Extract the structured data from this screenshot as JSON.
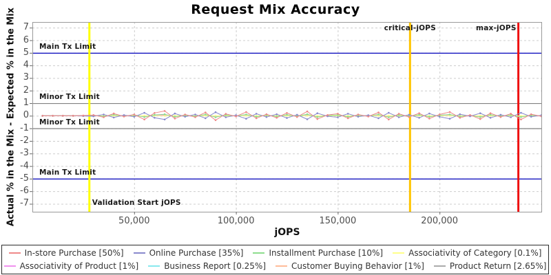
{
  "title": "Request Mix Accuracy",
  "chart_data": {
    "type": "line",
    "title": "Request Mix Accuracy",
    "xlabel": "jOPS",
    "ylabel": "Actual % in the Mix - Expected % in the Mix",
    "xlim": [
      0,
      250000
    ],
    "ylim": [
      -7.63,
      7.45
    ],
    "grid": "dashed",
    "legend_position": "bottom",
    "x_ticks": [
      {
        "value": 50000,
        "label": "50,000"
      },
      {
        "value": 100000,
        "label": "100,000"
      },
      {
        "value": 150000,
        "label": "150,000"
      },
      {
        "value": 200000,
        "label": "200,000"
      }
    ],
    "y_ticks": [
      {
        "value": 7,
        "label": "7"
      },
      {
        "value": 6,
        "label": "6"
      },
      {
        "value": 5,
        "label": "5"
      },
      {
        "value": 4,
        "label": "4"
      },
      {
        "value": 3,
        "label": "3"
      },
      {
        "value": 2,
        "label": "2"
      },
      {
        "value": 1,
        "label": "1"
      },
      {
        "value": 0,
        "label": "0"
      },
      {
        "value": -1,
        "label": "-1"
      },
      {
        "value": -2,
        "label": "-2"
      },
      {
        "value": -3,
        "label": "-3"
      },
      {
        "value": -4,
        "label": "-4"
      },
      {
        "value": -5,
        "label": "-5"
      },
      {
        "value": -6,
        "label": "-6"
      },
      {
        "value": -7,
        "label": "-7"
      }
    ],
    "limit_lines": [
      {
        "y": 5,
        "label": "Main Tx Limit",
        "color": "#0000bb"
      },
      {
        "y": 1,
        "label": "Minor Tx Limit",
        "color": "#808080"
      },
      {
        "y": -1,
        "label": "Minor Tx Limit",
        "color": "#808080"
      },
      {
        "y": -5,
        "label": "Main Tx Limit",
        "color": "#0000bb"
      }
    ],
    "marker_lines": [
      {
        "x": 28000,
        "label": "Validation Start jOPS",
        "color": "#ffff00",
        "label_pos": "bottom-right"
      },
      {
        "x": 185500,
        "label": "critical-jOPS",
        "color": "#ffc400",
        "label_pos": "top-center"
      },
      {
        "x": 238700,
        "label": "max-jOPS",
        "color": "#ee1111",
        "label_pos": "top-left"
      }
    ],
    "x_start": 5000,
    "x_step": 5000,
    "series": [
      {
        "name": "In-store Purchase [50%]",
        "color": "#ee8888",
        "values": [
          0,
          0,
          0,
          0,
          0.02,
          0.05,
          -0.12,
          0.18,
          -0.06,
          0.1,
          -0.3,
          0.22,
          0.38,
          -0.22,
          0.1,
          -0.12,
          0.26,
          -0.35,
          0.15,
          -0.05,
          0.3,
          -0.2,
          0.12,
          -0.16,
          0.22,
          -0.1,
          0.34,
          -0.26,
          0.06,
          0.16,
          -0.2,
          0.1,
          -0.06,
          0.26,
          -0.3,
          0.16,
          -0.1,
          0.2,
          -0.22,
          0.1,
          0.3,
          -0.16,
          0.06,
          -0.26,
          0.2,
          -0.1,
          0.16,
          -0.3,
          0.12,
          -0.04
        ]
      },
      {
        "name": "Online Purchase [35%]",
        "color": "#8888cc",
        "values": [
          0,
          0,
          0,
          0,
          -0.02,
          -0.04,
          0.1,
          -0.14,
          0.05,
          -0.08,
          0.24,
          -0.16,
          -0.3,
          0.18,
          -0.08,
          0.1,
          -0.2,
          0.28,
          -0.12,
          0.04,
          -0.24,
          0.16,
          -0.1,
          0.12,
          -0.18,
          0.08,
          -0.28,
          0.2,
          -0.04,
          -0.12,
          0.16,
          -0.08,
          0.04,
          -0.2,
          0.24,
          -0.12,
          0.08,
          -0.16,
          0.18,
          -0.08,
          -0.24,
          0.12,
          -0.04,
          0.2,
          -0.16,
          0.08,
          -0.12,
          0.24,
          -0.08,
          0.04
        ]
      },
      {
        "name": "Installment Purchase [10%]",
        "color": "#8cdd8c",
        "values": [
          0,
          0,
          0,
          0,
          0,
          0.02,
          -0.05,
          0.08,
          -0.03,
          0.05,
          -0.1,
          0.07,
          0.12,
          -0.08,
          0.04,
          -0.05,
          0.1,
          -0.12,
          0.06,
          -0.02,
          0.1,
          -0.08,
          0.05,
          -0.06,
          0.08,
          -0.04,
          0.12,
          -0.1,
          0.02,
          0.06,
          -0.08,
          0.04,
          -0.02,
          0.1,
          -0.12,
          0.06,
          -0.04,
          0.08,
          -0.08,
          0.04,
          0.1,
          -0.06,
          0.02,
          -0.1,
          0.08,
          -0.04,
          0.06,
          -0.1,
          0.04,
          -0.02
        ]
      },
      {
        "name": "Associativity of Category [0.1%]",
        "color": "#ffff88",
        "values": [
          0,
          0,
          0,
          0,
          0,
          0.01,
          -0.01,
          0.01,
          0,
          -0.01,
          0.01,
          0,
          -0.01,
          0.01,
          0,
          -0.01,
          0.01,
          0,
          -0.01,
          0.01,
          0,
          -0.01,
          0.01,
          0,
          -0.01,
          0.01,
          0,
          -0.01,
          0.01,
          0,
          -0.01,
          0.01,
          0,
          -0.01,
          0.01,
          0,
          -0.01,
          0.01,
          0,
          -0.01,
          0.01,
          0,
          -0.01,
          0.01,
          0,
          -0.01,
          0.01,
          -0.01,
          0.01,
          0
        ]
      },
      {
        "name": "Associativity of Product [1%]",
        "color": "#f090ee",
        "values": [
          0,
          0,
          0,
          0,
          0,
          0.02,
          -0.03,
          0.03,
          -0.02,
          0.03,
          -0.04,
          0.03,
          0.04,
          -0.03,
          0.02,
          -0.02,
          0.04,
          -0.04,
          0.02,
          -0.02,
          0.03,
          -0.03,
          0.02,
          -0.02,
          0.03,
          -0.02,
          0.04,
          -0.03,
          0.02,
          0.02,
          -0.03,
          0.02,
          -0.02,
          0.03,
          -0.04,
          0.02,
          -0.02,
          0.03,
          -0.03,
          0.02,
          0.04,
          -0.02,
          0.02,
          -0.03,
          0.03,
          -0.02,
          0.02,
          -0.04,
          0.02,
          -0.02
        ]
      },
      {
        "name": "Business Report [0.25%]",
        "color": "#88e8ee",
        "values": [
          0,
          0,
          0,
          0,
          0,
          0.01,
          -0.02,
          0.02,
          -0.01,
          0.02,
          -0.03,
          0.02,
          0.03,
          -0.02,
          0.01,
          -0.01,
          0.03,
          -0.03,
          0.02,
          -0.01,
          0.02,
          -0.02,
          0.01,
          -0.01,
          0.02,
          -0.01,
          0.03,
          -0.02,
          0.01,
          0.01,
          -0.02,
          0.01,
          -0.01,
          0.02,
          -0.03,
          0.01,
          -0.01,
          0.02,
          -0.02,
          0.01,
          0.03,
          -0.01,
          0.01,
          -0.02,
          0.02,
          -0.01,
          0.01,
          -0.03,
          0.01,
          -0.01
        ]
      },
      {
        "name": "Customer Buying Behavior [1%]",
        "color": "#ffbb99",
        "values": [
          0,
          0,
          0,
          0,
          0,
          0.03,
          -0.04,
          0.05,
          -0.03,
          0.04,
          -0.06,
          0.04,
          0.06,
          -0.05,
          0.03,
          -0.03,
          0.06,
          -0.06,
          0.04,
          -0.02,
          0.05,
          -0.04,
          0.03,
          -0.03,
          0.05,
          -0.03,
          0.06,
          -0.05,
          0.02,
          0.04,
          -0.05,
          0.03,
          -0.02,
          0.05,
          -0.06,
          0.04,
          -0.03,
          0.05,
          -0.05,
          0.03,
          0.06,
          -0.04,
          0.02,
          -0.05,
          0.05,
          -0.03,
          0.04,
          -0.06,
          0.03,
          -0.02
        ]
      },
      {
        "name": "Product Return [2.65%]",
        "color": "#aaaaaa",
        "values": [
          0,
          0,
          0,
          0,
          0,
          0.04,
          -0.06,
          0.07,
          -0.04,
          0.06,
          -0.08,
          0.06,
          0.09,
          -0.07,
          0.04,
          -0.04,
          0.08,
          -0.09,
          0.06,
          -0.03,
          0.07,
          -0.06,
          0.04,
          -0.04,
          0.07,
          -0.04,
          0.09,
          -0.07,
          0.03,
          0.05,
          -0.07,
          0.04,
          -0.03,
          0.07,
          -0.09,
          0.05,
          -0.04,
          0.07,
          -0.07,
          0.04,
          0.09,
          -0.05,
          0.03,
          -0.07,
          0.06,
          -0.04,
          0.05,
          -0.09,
          0.04,
          -0.03
        ]
      }
    ]
  }
}
